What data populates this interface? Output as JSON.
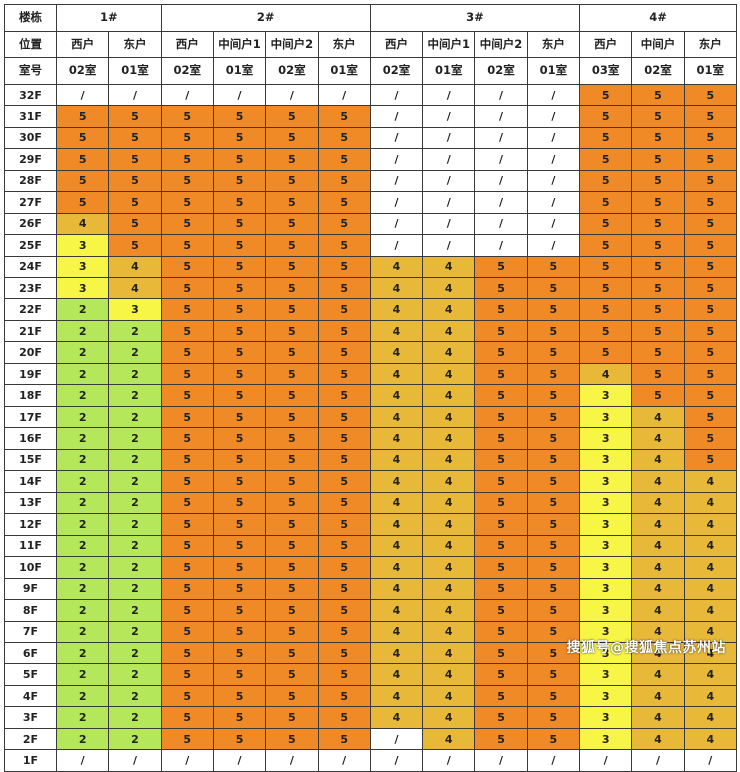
{
  "header": {
    "row_building_label": "楼栋",
    "row_position_label": "位置",
    "row_unit_label": "室号",
    "buildings": [
      {
        "name": "1#",
        "span": 2
      },
      {
        "name": "2#",
        "span": 4
      },
      {
        "name": "3#",
        "span": 4
      },
      {
        "name": "4#",
        "span": 3
      }
    ],
    "positions": [
      "西户",
      "东户",
      "西户",
      "中间户1",
      "中间户2",
      "东户",
      "西户",
      "中间户1",
      "中间户2",
      "东户",
      "西户",
      "中间户",
      "东户"
    ],
    "units": [
      "02室",
      "01室",
      "02室",
      "01室",
      "02室",
      "01室",
      "02室",
      "01室",
      "02室",
      "01室",
      "03室",
      "02室",
      "01室"
    ]
  },
  "colors": {
    "5": "#f08a26",
    "4": "#e8b938",
    "3": "#f7f545",
    "2": "#b4e85a",
    "/": "#ffffff"
  },
  "rows": [
    {
      "floor": "32F",
      "values": [
        "/",
        "/",
        "/",
        "/",
        "/",
        "/",
        "/",
        "/",
        "/",
        "/",
        "5",
        "5",
        "5"
      ]
    },
    {
      "floor": "31F",
      "values": [
        "5",
        "5",
        "5",
        "5",
        "5",
        "5",
        "/",
        "/",
        "/",
        "/",
        "5",
        "5",
        "5"
      ]
    },
    {
      "floor": "30F",
      "values": [
        "5",
        "5",
        "5",
        "5",
        "5",
        "5",
        "/",
        "/",
        "/",
        "/",
        "5",
        "5",
        "5"
      ]
    },
    {
      "floor": "29F",
      "values": [
        "5",
        "5",
        "5",
        "5",
        "5",
        "5",
        "/",
        "/",
        "/",
        "/",
        "5",
        "5",
        "5"
      ]
    },
    {
      "floor": "28F",
      "values": [
        "5",
        "5",
        "5",
        "5",
        "5",
        "5",
        "/",
        "/",
        "/",
        "/",
        "5",
        "5",
        "5"
      ]
    },
    {
      "floor": "27F",
      "values": [
        "5",
        "5",
        "5",
        "5",
        "5",
        "5",
        "/",
        "/",
        "/",
        "/",
        "5",
        "5",
        "5"
      ]
    },
    {
      "floor": "26F",
      "values": [
        "4",
        "5",
        "5",
        "5",
        "5",
        "5",
        "/",
        "/",
        "/",
        "/",
        "5",
        "5",
        "5"
      ]
    },
    {
      "floor": "25F",
      "values": [
        "3",
        "5",
        "5",
        "5",
        "5",
        "5",
        "/",
        "/",
        "/",
        "/",
        "5",
        "5",
        "5"
      ]
    },
    {
      "floor": "24F",
      "values": [
        "3",
        "4",
        "5",
        "5",
        "5",
        "5",
        "4",
        "4",
        "5",
        "5",
        "5",
        "5",
        "5"
      ]
    },
    {
      "floor": "23F",
      "values": [
        "3",
        "4",
        "5",
        "5",
        "5",
        "5",
        "4",
        "4",
        "5",
        "5",
        "5",
        "5",
        "5"
      ]
    },
    {
      "floor": "22F",
      "values": [
        "2",
        "3",
        "5",
        "5",
        "5",
        "5",
        "4",
        "4",
        "5",
        "5",
        "5",
        "5",
        "5"
      ]
    },
    {
      "floor": "21F",
      "values": [
        "2",
        "2",
        "5",
        "5",
        "5",
        "5",
        "4",
        "4",
        "5",
        "5",
        "5",
        "5",
        "5"
      ]
    },
    {
      "floor": "20F",
      "values": [
        "2",
        "2",
        "5",
        "5",
        "5",
        "5",
        "4",
        "4",
        "5",
        "5",
        "5",
        "5",
        "5"
      ]
    },
    {
      "floor": "19F",
      "values": [
        "2",
        "2",
        "5",
        "5",
        "5",
        "5",
        "4",
        "4",
        "5",
        "5",
        "4",
        "5",
        "5"
      ]
    },
    {
      "floor": "18F",
      "values": [
        "2",
        "2",
        "5",
        "5",
        "5",
        "5",
        "4",
        "4",
        "5",
        "5",
        "3",
        "5",
        "5"
      ]
    },
    {
      "floor": "17F",
      "values": [
        "2",
        "2",
        "5",
        "5",
        "5",
        "5",
        "4",
        "4",
        "5",
        "5",
        "3",
        "4",
        "5"
      ]
    },
    {
      "floor": "16F",
      "values": [
        "2",
        "2",
        "5",
        "5",
        "5",
        "5",
        "4",
        "4",
        "5",
        "5",
        "3",
        "4",
        "5"
      ]
    },
    {
      "floor": "15F",
      "values": [
        "2",
        "2",
        "5",
        "5",
        "5",
        "5",
        "4",
        "4",
        "5",
        "5",
        "3",
        "4",
        "5"
      ]
    },
    {
      "floor": "14F",
      "values": [
        "2",
        "2",
        "5",
        "5",
        "5",
        "5",
        "4",
        "4",
        "5",
        "5",
        "3",
        "4",
        "4"
      ]
    },
    {
      "floor": "13F",
      "values": [
        "2",
        "2",
        "5",
        "5",
        "5",
        "5",
        "4",
        "4",
        "5",
        "5",
        "3",
        "4",
        "4"
      ]
    },
    {
      "floor": "12F",
      "values": [
        "2",
        "2",
        "5",
        "5",
        "5",
        "5",
        "4",
        "4",
        "5",
        "5",
        "3",
        "4",
        "4"
      ]
    },
    {
      "floor": "11F",
      "values": [
        "2",
        "2",
        "5",
        "5",
        "5",
        "5",
        "4",
        "4",
        "5",
        "5",
        "3",
        "4",
        "4"
      ]
    },
    {
      "floor": "10F",
      "values": [
        "2",
        "2",
        "5",
        "5",
        "5",
        "5",
        "4",
        "4",
        "5",
        "5",
        "3",
        "4",
        "4"
      ]
    },
    {
      "floor": "9F",
      "values": [
        "2",
        "2",
        "5",
        "5",
        "5",
        "5",
        "4",
        "4",
        "5",
        "5",
        "3",
        "4",
        "4"
      ]
    },
    {
      "floor": "8F",
      "values": [
        "2",
        "2",
        "5",
        "5",
        "5",
        "5",
        "4",
        "4",
        "5",
        "5",
        "3",
        "4",
        "4"
      ]
    },
    {
      "floor": "7F",
      "values": [
        "2",
        "2",
        "5",
        "5",
        "5",
        "5",
        "4",
        "4",
        "5",
        "5",
        "3",
        "4",
        "4"
      ]
    },
    {
      "floor": "6F",
      "values": [
        "2",
        "2",
        "5",
        "5",
        "5",
        "5",
        "4",
        "4",
        "5",
        "5",
        "3",
        "4",
        "4"
      ]
    },
    {
      "floor": "5F",
      "values": [
        "2",
        "2",
        "5",
        "5",
        "5",
        "5",
        "4",
        "4",
        "5",
        "5",
        "3",
        "4",
        "4"
      ]
    },
    {
      "floor": "4F",
      "values": [
        "2",
        "2",
        "5",
        "5",
        "5",
        "5",
        "4",
        "4",
        "5",
        "5",
        "3",
        "4",
        "4"
      ]
    },
    {
      "floor": "3F",
      "values": [
        "2",
        "2",
        "5",
        "5",
        "5",
        "5",
        "4",
        "4",
        "5",
        "5",
        "3",
        "4",
        "4"
      ]
    },
    {
      "floor": "2F",
      "values": [
        "2",
        "2",
        "5",
        "5",
        "5",
        "5",
        "/",
        "4",
        "5",
        "5",
        "3",
        "4",
        "4"
      ]
    },
    {
      "floor": "1F",
      "values": [
        "/",
        "/",
        "/",
        "/",
        "/",
        "/",
        "/",
        "/",
        "/",
        "/",
        "/",
        "/",
        "/"
      ]
    }
  ],
  "watermark": "搜狐号@搜狐焦点苏州站"
}
